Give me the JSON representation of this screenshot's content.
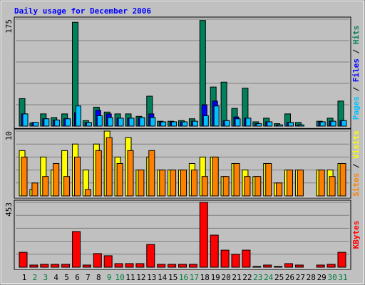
{
  "chart_data": {
    "type": "bar",
    "title": "Daily usage for December 2006",
    "title_color": "#0000ff",
    "legend_separator": " / ",
    "categories": [
      "1",
      "2",
      "3",
      "4",
      "5",
      "6",
      "7",
      "8",
      "9",
      "10",
      "11",
      "12",
      "13",
      "14",
      "15",
      "16",
      "17",
      "18",
      "19",
      "20",
      "21",
      "22",
      "23",
      "24",
      "25",
      "26",
      "27",
      "28",
      "29",
      "30",
      "31"
    ],
    "category_colors": [
      "#000000",
      "#008040",
      "#008040",
      "#000000",
      "#000000",
      "#000000",
      "#000000",
      "#000000",
      "#008040",
      "#008040",
      "#000000",
      "#000000",
      "#000000",
      "#000000",
      "#000000",
      "#008040",
      "#008040",
      "#000000",
      "#000000",
      "#000000",
      "#000000",
      "#000000",
      "#008040",
      "#008040",
      "#000000",
      "#000000",
      "#000000",
      "#000000",
      "#000000",
      "#008040",
      "#008040"
    ],
    "panels": [
      {
        "ylim": [
          0,
          175
        ],
        "yticks": [
          175
        ],
        "series": [
          {
            "name": "Pages",
            "color": "#00c0ff",
            "values": [
              20,
              6,
              12,
              10,
              12,
              33,
              6,
              17,
              14,
              13,
              13,
              14,
              14,
              7,
              7,
              7,
              8,
              17,
              33,
              9,
              12,
              13,
              4,
              7,
              2,
              6,
              2,
              0,
              7,
              8,
              9
            ]
          },
          {
            "name": "Files",
            "color": "#0000ff",
            "values": [
              20,
              6,
              12,
              10,
              12,
              22,
              6,
              26,
              20,
              13,
              13,
              14,
              20,
              7,
              7,
              7,
              8,
              35,
              41,
              9,
              15,
              13,
              4,
              7,
              2,
              6,
              2,
              0,
              7,
              8,
              9
            ]
          },
          {
            "name": "Hits",
            "color": "#00805c",
            "values": [
              45,
              5,
              20,
              14,
              20,
              170,
              9,
              31,
              23,
              20,
              20,
              16,
              49,
              8,
              8,
              9,
              12,
              173,
              64,
              72,
              29,
              62,
              7,
              13,
              4,
              20,
              6,
              0,
              8,
              13,
              41
            ]
          }
        ]
      },
      {
        "ylim": [
          0,
          10
        ],
        "yticks": [
          10
        ],
        "series": [
          {
            "name": "Sites",
            "color": "#ff8000",
            "values": [
              6,
              2,
              3,
              5,
              3,
              6,
              1,
              7,
              9,
              5,
              7,
              4,
              7,
              4,
              4,
              4,
              4,
              3,
              6,
              3,
              5,
              3,
              3,
              5,
              2,
              4,
              4,
              0,
              4,
              3,
              5
            ]
          },
          {
            "name": "Visits",
            "color": "#ffff00",
            "values": [
              7,
              1,
              6,
              4,
              7,
              8,
              4,
              8,
              10,
              6,
              9,
              4,
              6,
              4,
              4,
              4,
              5,
              6,
              6,
              3,
              5,
              4,
              3,
              5,
              2,
              4,
              4,
              0,
              4,
              4,
              5
            ]
          }
        ]
      },
      {
        "ylim": [
          0,
          453
        ],
        "yticks": [
          453
        ],
        "series": [
          {
            "name": "KBytes",
            "color": "#ff0000",
            "values": [
              104,
              15,
              20,
              20,
              20,
              249,
              15,
              95,
              80,
              25,
              25,
              25,
              159,
              20,
              20,
              20,
              20,
              453,
              224,
              119,
              90,
              119,
              5,
              15,
              5,
              25,
              15,
              0,
              15,
              20,
              104
            ]
          }
        ]
      }
    ]
  }
}
